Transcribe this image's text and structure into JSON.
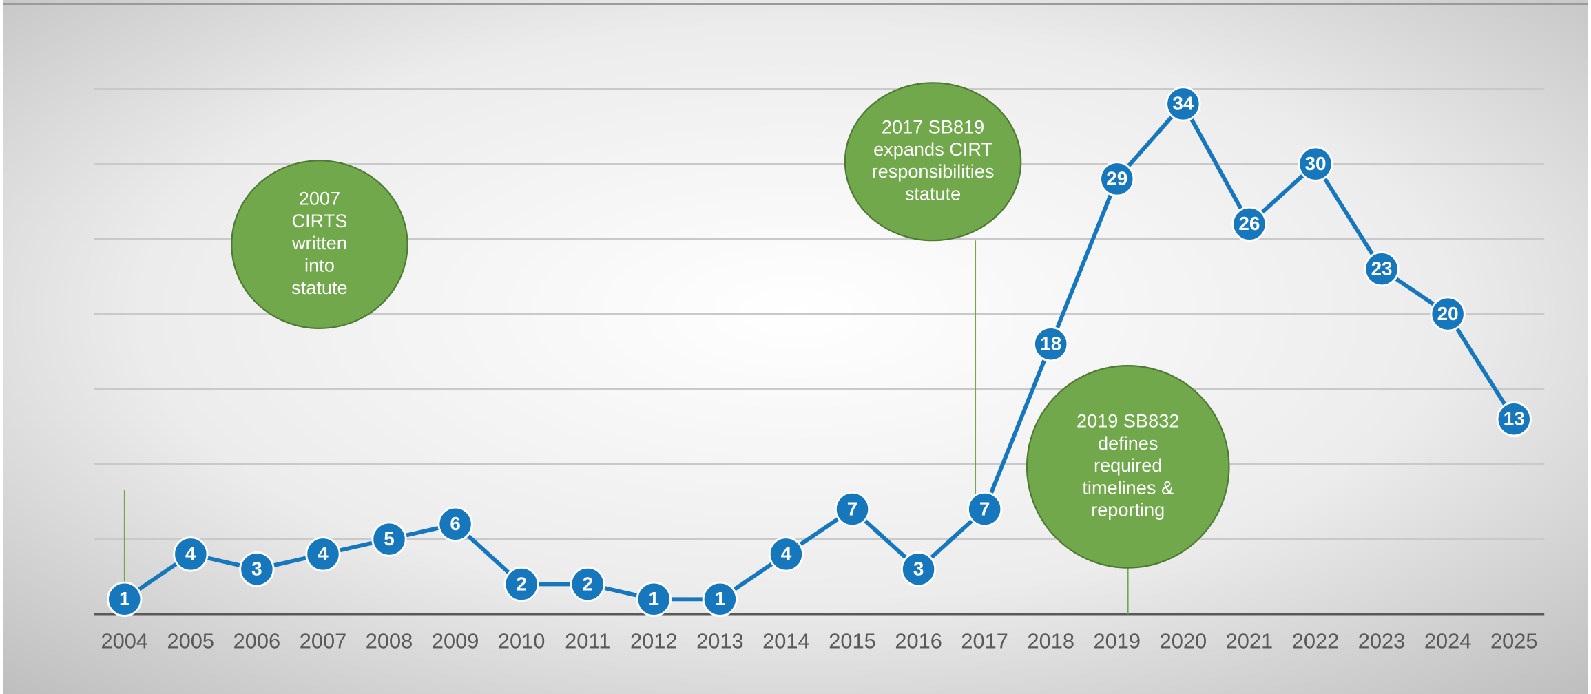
{
  "chart_data": {
    "type": "line",
    "categories": [
      "2004",
      "2005",
      "2006",
      "2007",
      "2008",
      "2009",
      "2010",
      "2011",
      "2012",
      "2013",
      "2014",
      "2015",
      "2016",
      "2017",
      "2018",
      "2019",
      "2020",
      "2021",
      "2022",
      "2023",
      "2024",
      "2025"
    ],
    "series": [
      {
        "color": "#1777bd",
        "values": [
          1,
          4,
          3,
          4,
          5,
          6,
          2,
          2,
          1,
          1,
          4,
          7,
          3,
          7,
          18,
          29,
          34,
          26,
          30,
          23,
          20,
          13
        ]
      }
    ],
    "ylim": [
      0,
      35
    ],
    "yticks": [
      0,
      5,
      10,
      15,
      20,
      25,
      30,
      35
    ],
    "grid": true,
    "annotations": [
      {
        "lines": [
          "2007",
          "CIRTS",
          "written",
          "into",
          "statute"
        ]
      },
      {
        "lines": [
          "2017 SB819",
          "expands CIRT",
          "responsibilities",
          "statute"
        ]
      },
      {
        "lines": [
          "2019 SB832",
          "defines",
          "required",
          "timelines &",
          "reporting"
        ]
      }
    ]
  }
}
